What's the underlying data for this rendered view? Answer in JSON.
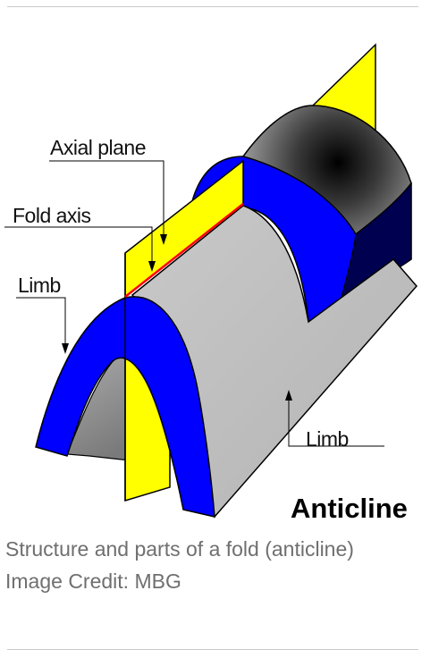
{
  "diagram": {
    "title": "Anticline",
    "labels": {
      "axial_plane": "Axial plane",
      "fold_axis": "Fold axis",
      "limb_left": "Limb",
      "limb_right": "Limb"
    },
    "colors": {
      "axial_plane": "#ffff00",
      "fold_layer": "#0000ff",
      "limb_surface": "#c0c0c0",
      "fold_axis_line": "#ff0000",
      "core": "#000000"
    }
  },
  "caption": {
    "text": "Structure and parts of a fold (anticline)",
    "credit": "Image Credit: MBG"
  }
}
